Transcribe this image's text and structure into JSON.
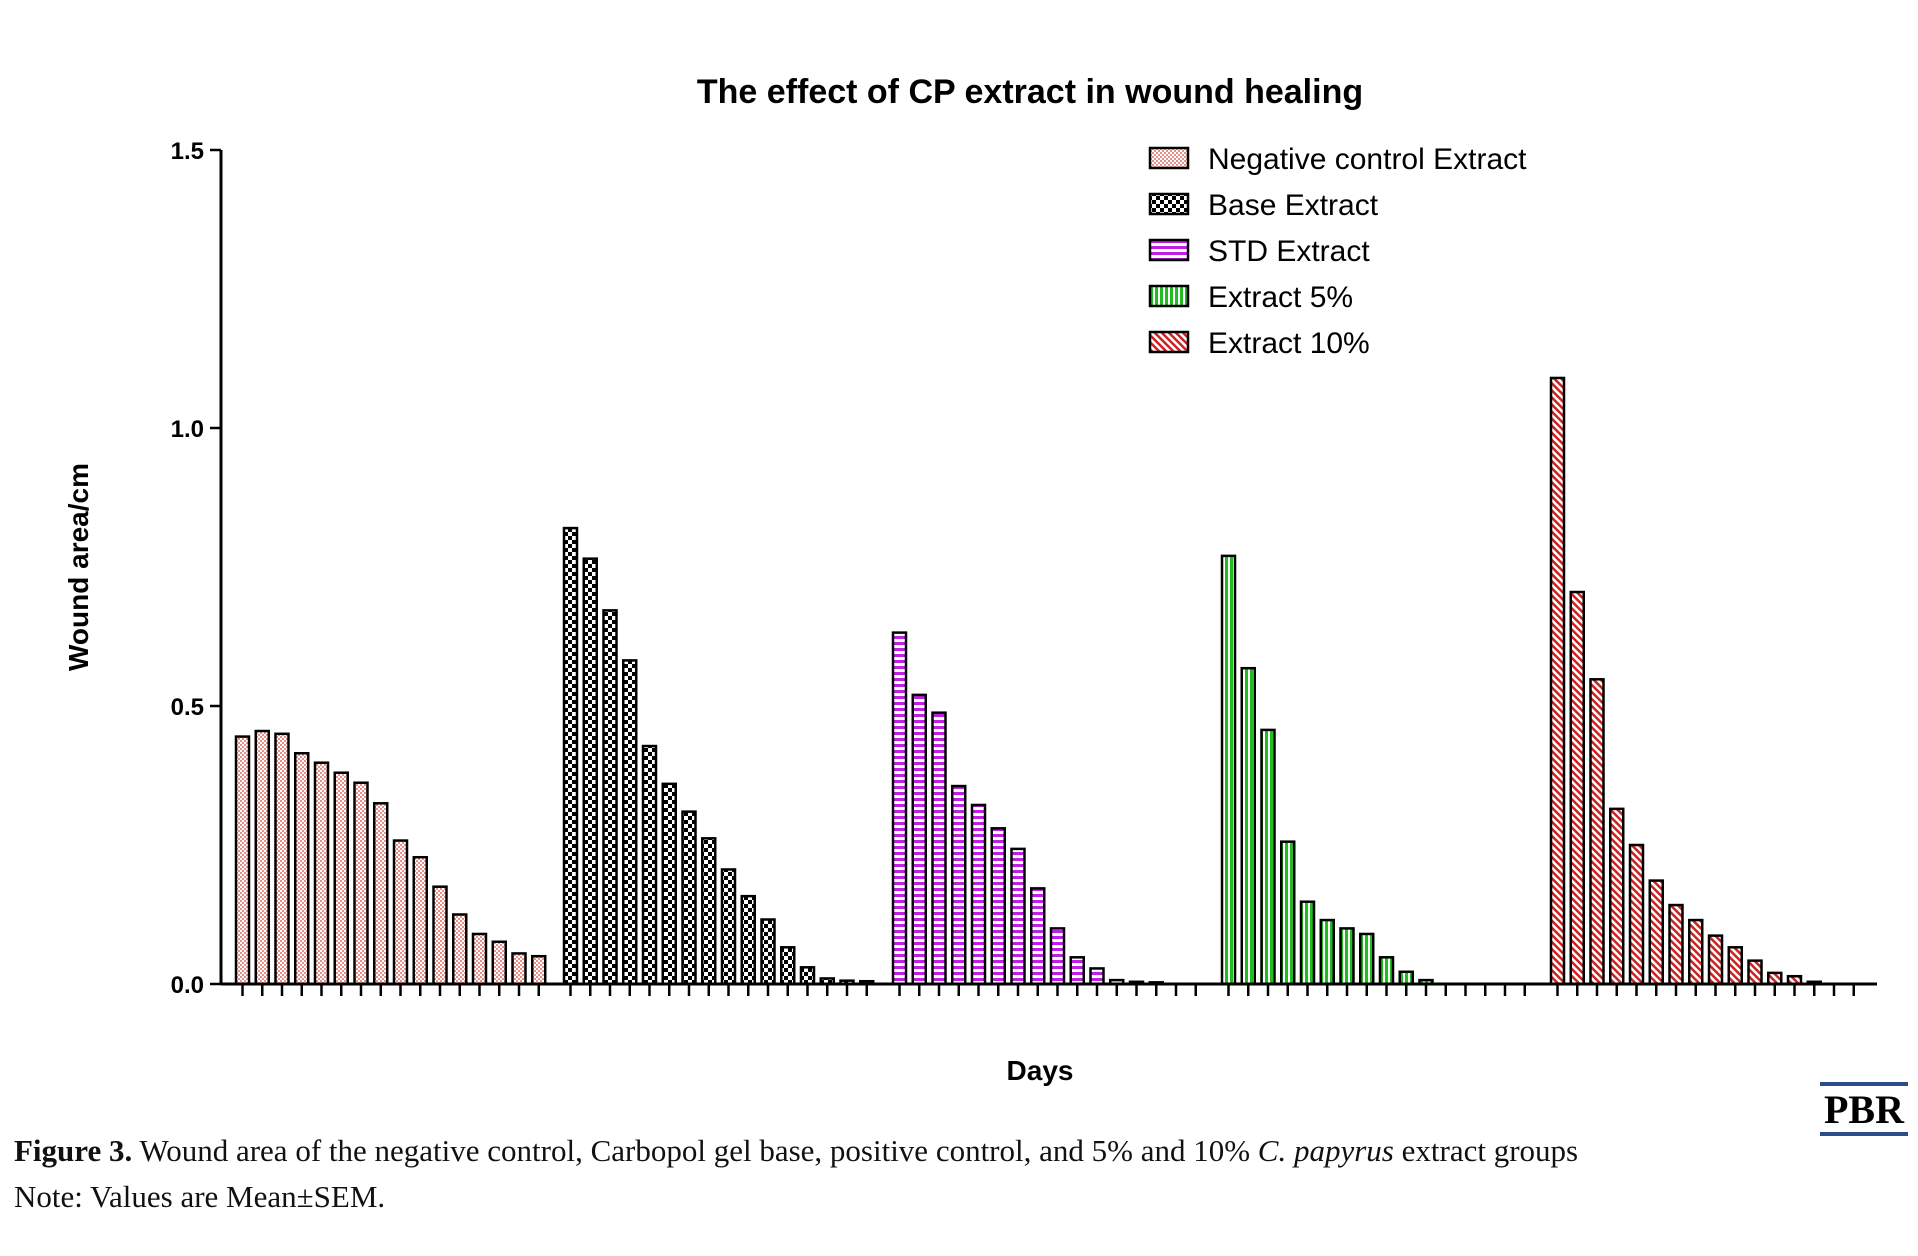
{
  "chart_data": {
    "type": "bar",
    "title": "The effect of CP extract in wound healing",
    "xlabel": "Days",
    "ylabel": "Wound area/cm",
    "ylim": [
      0,
      1.5
    ],
    "yticks": [
      "0.0",
      "0.5",
      "1.0",
      "1.5"
    ],
    "grid": false,
    "legend_position": "top-right",
    "series": [
      {
        "name": "Negative control Extract",
        "color": "#f4b4b0",
        "pattern": "fine-check",
        "values": [
          0.445,
          0.455,
          0.45,
          0.415,
          0.398,
          0.38,
          0.362,
          0.325,
          0.258,
          0.228,
          0.175,
          0.125,
          0.09,
          0.076,
          0.055,
          0.05
        ]
      },
      {
        "name": "Base Extract",
        "color": "#000000",
        "pattern": "checker",
        "values": [
          0.82,
          0.765,
          0.672,
          0.582,
          0.428,
          0.36,
          0.31,
          0.262,
          0.206,
          0.158,
          0.116,
          0.066,
          0.03,
          0.01,
          0.006,
          0.005
        ]
      },
      {
        "name": "STD Extract",
        "color": "#cc33ee",
        "pattern": "horizontal",
        "values": [
          0.632,
          0.52,
          0.488,
          0.356,
          0.322,
          0.28,
          0.243,
          0.172,
          0.1,
          0.048,
          0.028,
          0.007,
          0.004,
          0.003,
          0,
          0
        ]
      },
      {
        "name": "Extract 5%",
        "color": "#33cc33",
        "pattern": "vertical",
        "values": [
          0.77,
          0.568,
          0.457,
          0.256,
          0.148,
          0.115,
          0.1,
          0.09,
          0.048,
          0.022,
          0.007,
          0,
          0,
          0,
          0,
          0
        ]
      },
      {
        "name": "Extract 10%",
        "color": "#cc2222",
        "pattern": "diagonal",
        "values": [
          1.09,
          0.705,
          0.548,
          0.315,
          0.25,
          0.186,
          0.142,
          0.115,
          0.087,
          0.066,
          0.042,
          0.02,
          0.014,
          0.004,
          0,
          0
        ]
      }
    ]
  },
  "logo": {
    "text": "PBR"
  },
  "caption": {
    "label": "Figure 3.",
    "text_before": " Wound area of the negative control, Carbopol gel base, positive control, and 5% and 10% ",
    "species": "C. papyrus",
    "text_after": " extract groups",
    "note": "Note: Values are Mean±SEM."
  }
}
